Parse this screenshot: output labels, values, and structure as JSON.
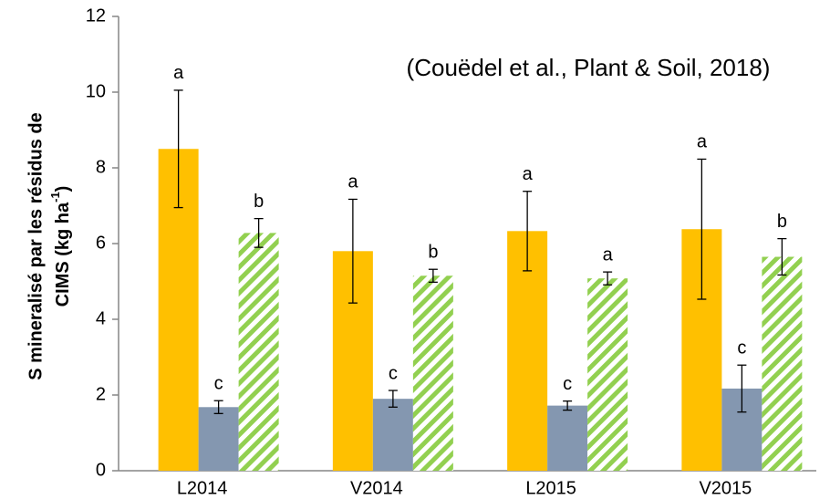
{
  "chart_data": {
    "type": "bar",
    "annotation": "(Couëdel et al., Plant & Soil, 2018)",
    "ylabel": {
      "line1": "S mineralisé par les résidus de",
      "line2": "CIMS (kg ha",
      "sup": "-1",
      "end": ")"
    },
    "categories": [
      "L2014",
      "V2014",
      "L2015",
      "V2015"
    ],
    "series": [
      {
        "color": "#FFC000",
        "hatch": false,
        "values": [
          8.5,
          5.8,
          6.33,
          6.38
        ],
        "errors": [
          1.55,
          1.37,
          1.05,
          1.85
        ],
        "letters": [
          "a",
          "a",
          "a",
          "a"
        ]
      },
      {
        "color": "#8497B0",
        "hatch": false,
        "values": [
          1.68,
          1.9,
          1.72,
          2.17
        ],
        "errors": [
          0.17,
          0.22,
          0.12,
          0.62
        ],
        "letters": [
          "c",
          "c",
          "c",
          "c"
        ]
      },
      {
        "color": "#92D050",
        "hatch": true,
        "values": [
          6.28,
          5.15,
          5.08,
          5.65
        ],
        "errors": [
          0.38,
          0.17,
          0.17,
          0.48
        ],
        "letters": [
          "b",
          "b",
          "a",
          "b"
        ]
      }
    ],
    "ylim": [
      0,
      12
    ],
    "yticks": [
      0,
      2,
      4,
      6,
      8,
      10,
      12
    ],
    "grid": false
  }
}
